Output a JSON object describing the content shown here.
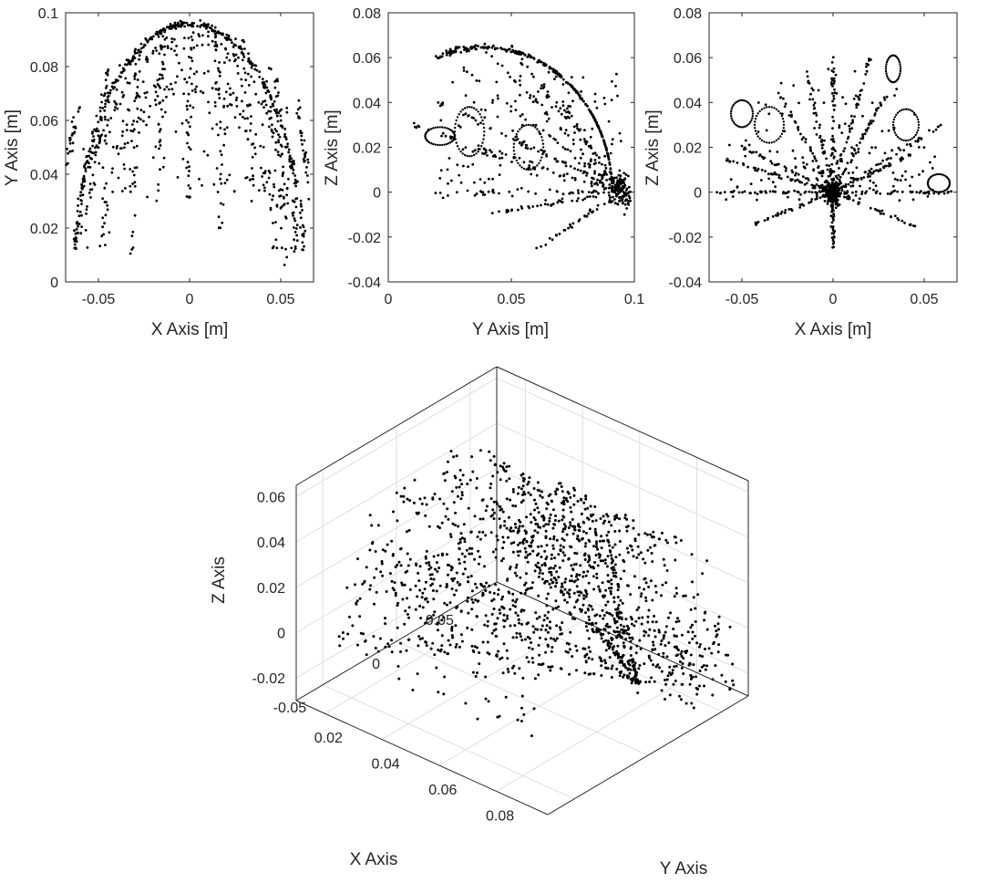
{
  "chart_data": [
    {
      "type": "scatter",
      "xlabel": "X Axis [m]",
      "ylabel": "Y Axis [m]",
      "xlim": [
        -0.068,
        0.068
      ],
      "ylim": [
        0,
        0.1
      ],
      "xticks": [
        -0.05,
        0,
        0.05
      ],
      "xtick_labels": [
        "-0.05",
        "0",
        "0.05"
      ],
      "yticks": [
        0,
        0.02,
        0.04,
        0.06,
        0.08,
        0.1
      ],
      "ytick_labels": [
        "0",
        "0.02",
        "0.04",
        "0.06",
        "0.08",
        "0.1"
      ],
      "grid": false,
      "color": "#000000",
      "description_shape": "dome",
      "arches": [
        {
          "r": 0.096,
          "spread": 0.002,
          "count": 360
        },
        {
          "r": 0.09,
          "spread": 0.006,
          "count": 160
        },
        {
          "r": 0.075,
          "spread": 0.008,
          "count": 120
        }
      ],
      "rays": [
        {
          "x": -0.028,
          "y0": 0.09,
          "y1": 0.01
        },
        {
          "x": -0.015,
          "y0": 0.095,
          "y1": 0.03
        },
        {
          "x": 0.0,
          "y0": 0.097,
          "y1": 0.03
        },
        {
          "x": 0.015,
          "y0": 0.095,
          "y1": 0.02
        },
        {
          "x": 0.03,
          "y0": 0.09,
          "y1": 0.035
        },
        {
          "x": 0.047,
          "y0": 0.08,
          "y1": 0.005
        },
        {
          "x": 0.058,
          "y0": 0.07,
          "y1": 0.03
        },
        {
          "x": -0.045,
          "y0": 0.08,
          "y1": 0.045
        },
        {
          "x": -0.06,
          "y0": 0.065,
          "y1": 0.04
        }
      ]
    },
    {
      "type": "scatter",
      "xlabel": "Y Axis [m]",
      "ylabel": "Z Axis [m]",
      "xlim": [
        0,
        0.1
      ],
      "ylim": [
        -0.04,
        0.08
      ],
      "xticks": [
        0,
        0.05,
        0.1
      ],
      "xtick_labels": [
        "0",
        "0.05",
        "0.1"
      ],
      "yticks": [
        -0.04,
        -0.02,
        0,
        0.02,
        0.04,
        0.06,
        0.08
      ],
      "ytick_labels": [
        "-0.04",
        "-0.02",
        "0",
        "0.02",
        "0.04",
        "0.06",
        "0.08"
      ],
      "grid": false,
      "color": "#000000",
      "description_shape": "quarter-fan",
      "hub": [
        0.095,
        0.0
      ],
      "arc_radius": 0.095,
      "rays_to": [
        [
          0.01,
          0.03
        ],
        [
          0.02,
          0.04
        ],
        [
          0.03,
          0.055
        ],
        [
          0.04,
          0.063
        ],
        [
          0.05,
          0.065
        ],
        [
          0.03,
          0.02
        ],
        [
          0.02,
          0.0
        ],
        [
          0.04,
          -0.01
        ],
        [
          0.06,
          -0.025
        ],
        [
          0.07,
          0.04
        ],
        [
          0.05,
          0.025
        ]
      ],
      "loops": [
        {
          "cx": 0.033,
          "cy": 0.027,
          "rx": 0.006,
          "ry": 0.011
        },
        {
          "cx": 0.057,
          "cy": 0.02,
          "rx": 0.006,
          "ry": 0.01
        },
        {
          "cx": 0.021,
          "cy": 0.025,
          "rx": 0.006,
          "ry": 0.004
        }
      ]
    },
    {
      "type": "scatter",
      "xlabel": "X Axis [m]",
      "ylabel": "Z Axis [m]",
      "xlim": [
        -0.068,
        0.068
      ],
      "ylim": [
        -0.04,
        0.08
      ],
      "xticks": [
        -0.05,
        0,
        0.05
      ],
      "xtick_labels": [
        "-0.05",
        "0",
        "0.05"
      ],
      "yticks": [
        -0.04,
        -0.02,
        0,
        0.02,
        0.04,
        0.06,
        0.08
      ],
      "ytick_labels": [
        "-0.04",
        "-0.02",
        "0",
        "0.02",
        "0.04",
        "0.06",
        "0.08"
      ],
      "grid": false,
      "color": "#000000",
      "description_shape": "starburst",
      "hub": [
        0.0,
        0.0
      ],
      "rays_to": [
        [
          -0.065,
          0.0
        ],
        [
          0.067,
          0.0
        ],
        [
          0.0,
          0.065
        ],
        [
          0.0,
          -0.025
        ],
        [
          -0.05,
          0.02
        ],
        [
          0.05,
          0.02
        ],
        [
          -0.045,
          -0.015
        ],
        [
          0.045,
          -0.015
        ],
        [
          -0.03,
          0.045
        ],
        [
          0.03,
          0.045
        ],
        [
          0.02,
          0.06
        ],
        [
          -0.015,
          0.055
        ],
        [
          0.06,
          0.03
        ],
        [
          -0.06,
          0.015
        ]
      ],
      "loops": [
        {
          "cx": -0.05,
          "cy": 0.035,
          "rx": 0.006,
          "ry": 0.006
        },
        {
          "cx": -0.035,
          "cy": 0.03,
          "rx": 0.008,
          "ry": 0.008
        },
        {
          "cx": 0.04,
          "cy": 0.03,
          "rx": 0.007,
          "ry": 0.007
        },
        {
          "cx": 0.058,
          "cy": 0.004,
          "rx": 0.006,
          "ry": 0.004
        },
        {
          "cx": 0.033,
          "cy": 0.055,
          "rx": 0.004,
          "ry": 0.006
        }
      ]
    },
    {
      "type": "scatter",
      "projection": "3d",
      "xlabel": "X Axis",
      "ylabel": "Y Axis",
      "zlabel": "Z Axis",
      "xlim": [
        -0.068,
        0.068
      ],
      "ylim": [
        0.01,
        0.098
      ],
      "zlim": [
        -0.03,
        0.065
      ],
      "xticks": [
        -0.05,
        0,
        0.05
      ],
      "xtick_labels": [
        "-0.05",
        "0",
        "0.05"
      ],
      "yticks": [
        0.02,
        0.04,
        0.06,
        0.08
      ],
      "ytick_labels": [
        "0.02",
        "0.04",
        "0.06",
        "0.08"
      ],
      "zticks": [
        -0.02,
        0,
        0.02,
        0.04,
        0.06
      ],
      "ztick_labels": [
        "-0.02",
        "0",
        "0.02",
        "0.04",
        "0.06"
      ],
      "grid": true,
      "color": "#000000",
      "description_shape": "hemispherical-cloud"
    }
  ]
}
